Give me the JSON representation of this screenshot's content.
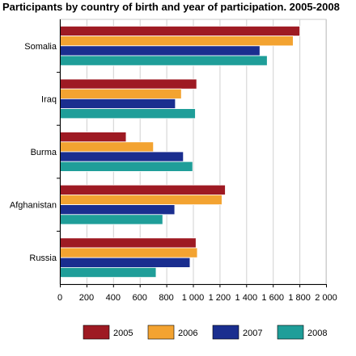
{
  "chart_data": {
    "type": "bar",
    "orientation": "horizontal",
    "title": "Participants by country of birth and year of participation. 2005-2008",
    "xlabel": "",
    "ylabel": "",
    "categories": [
      "Somalia",
      "Iraq",
      "Burma",
      "Afghanistan",
      "Russia"
    ],
    "xlim": [
      0,
      2000
    ],
    "x_ticks": [
      0,
      200,
      400,
      600,
      800,
      1000,
      1200,
      1400,
      1600,
      1800,
      2000
    ],
    "x_tick_labels": [
      "0",
      "200",
      "400",
      "600",
      "800",
      "1 000",
      "1 200",
      "1 400",
      "1 600",
      "1 800",
      "2 000"
    ],
    "grid": "vertical",
    "legend_position": "bottom",
    "series": [
      {
        "name": "2005",
        "color": "#9e1a23",
        "values": [
          1800,
          1025,
          495,
          1240,
          1020
        ]
      },
      {
        "name": "2006",
        "color": "#f3a331",
        "values": [
          1750,
          910,
          700,
          1215,
          1030
        ]
      },
      {
        "name": "2007",
        "color": "#1a2e8f",
        "values": [
          1500,
          865,
          925,
          860,
          975
        ]
      },
      {
        "name": "2008",
        "color": "#1f9e99",
        "values": [
          1555,
          1015,
          995,
          770,
          720
        ]
      }
    ]
  }
}
